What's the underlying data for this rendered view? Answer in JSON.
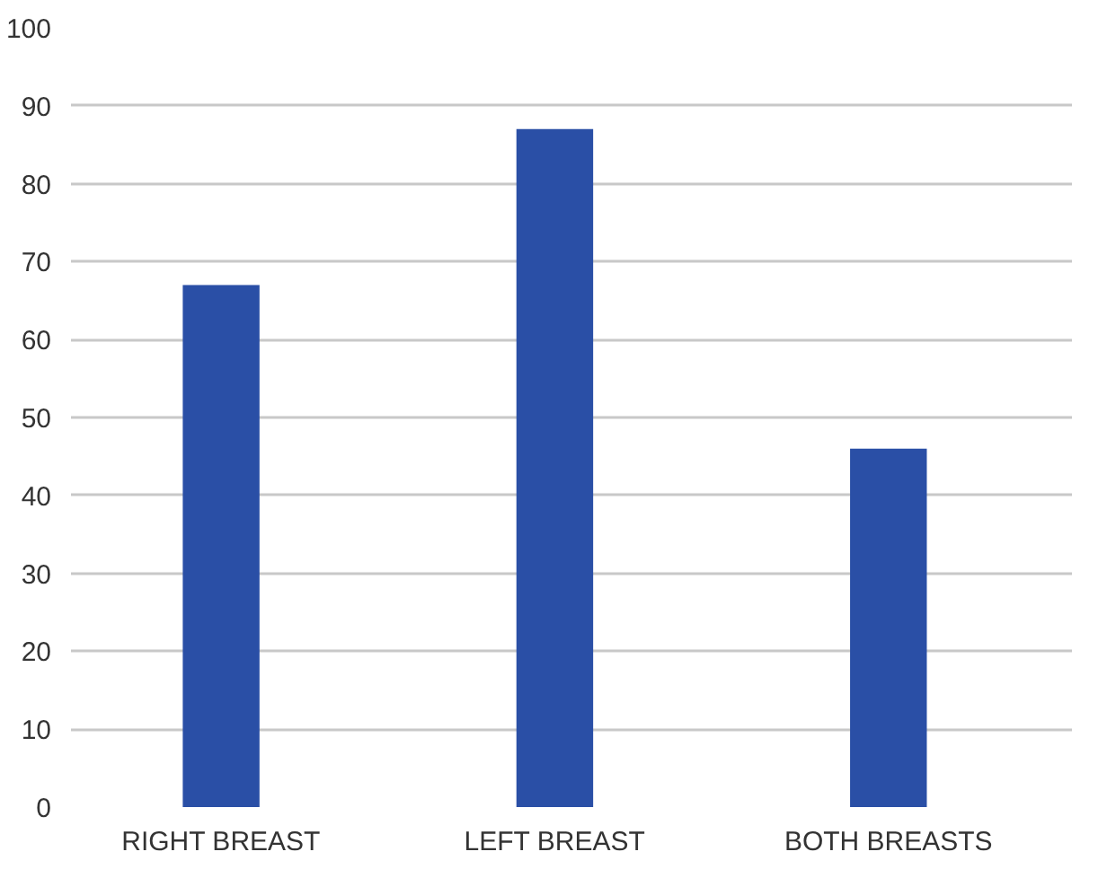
{
  "chart_data": {
    "type": "bar",
    "categories": [
      "RIGHT BREAST",
      "LEFT BREAST",
      "BOTH BREASTS"
    ],
    "values": [
      67,
      87,
      46
    ],
    "color": "#2a4fa6",
    "ylim": [
      0,
      100
    ],
    "yticks": [
      0,
      10,
      20,
      30,
      40,
      50,
      60,
      70,
      80,
      90,
      100
    ],
    "grid": "y"
  }
}
